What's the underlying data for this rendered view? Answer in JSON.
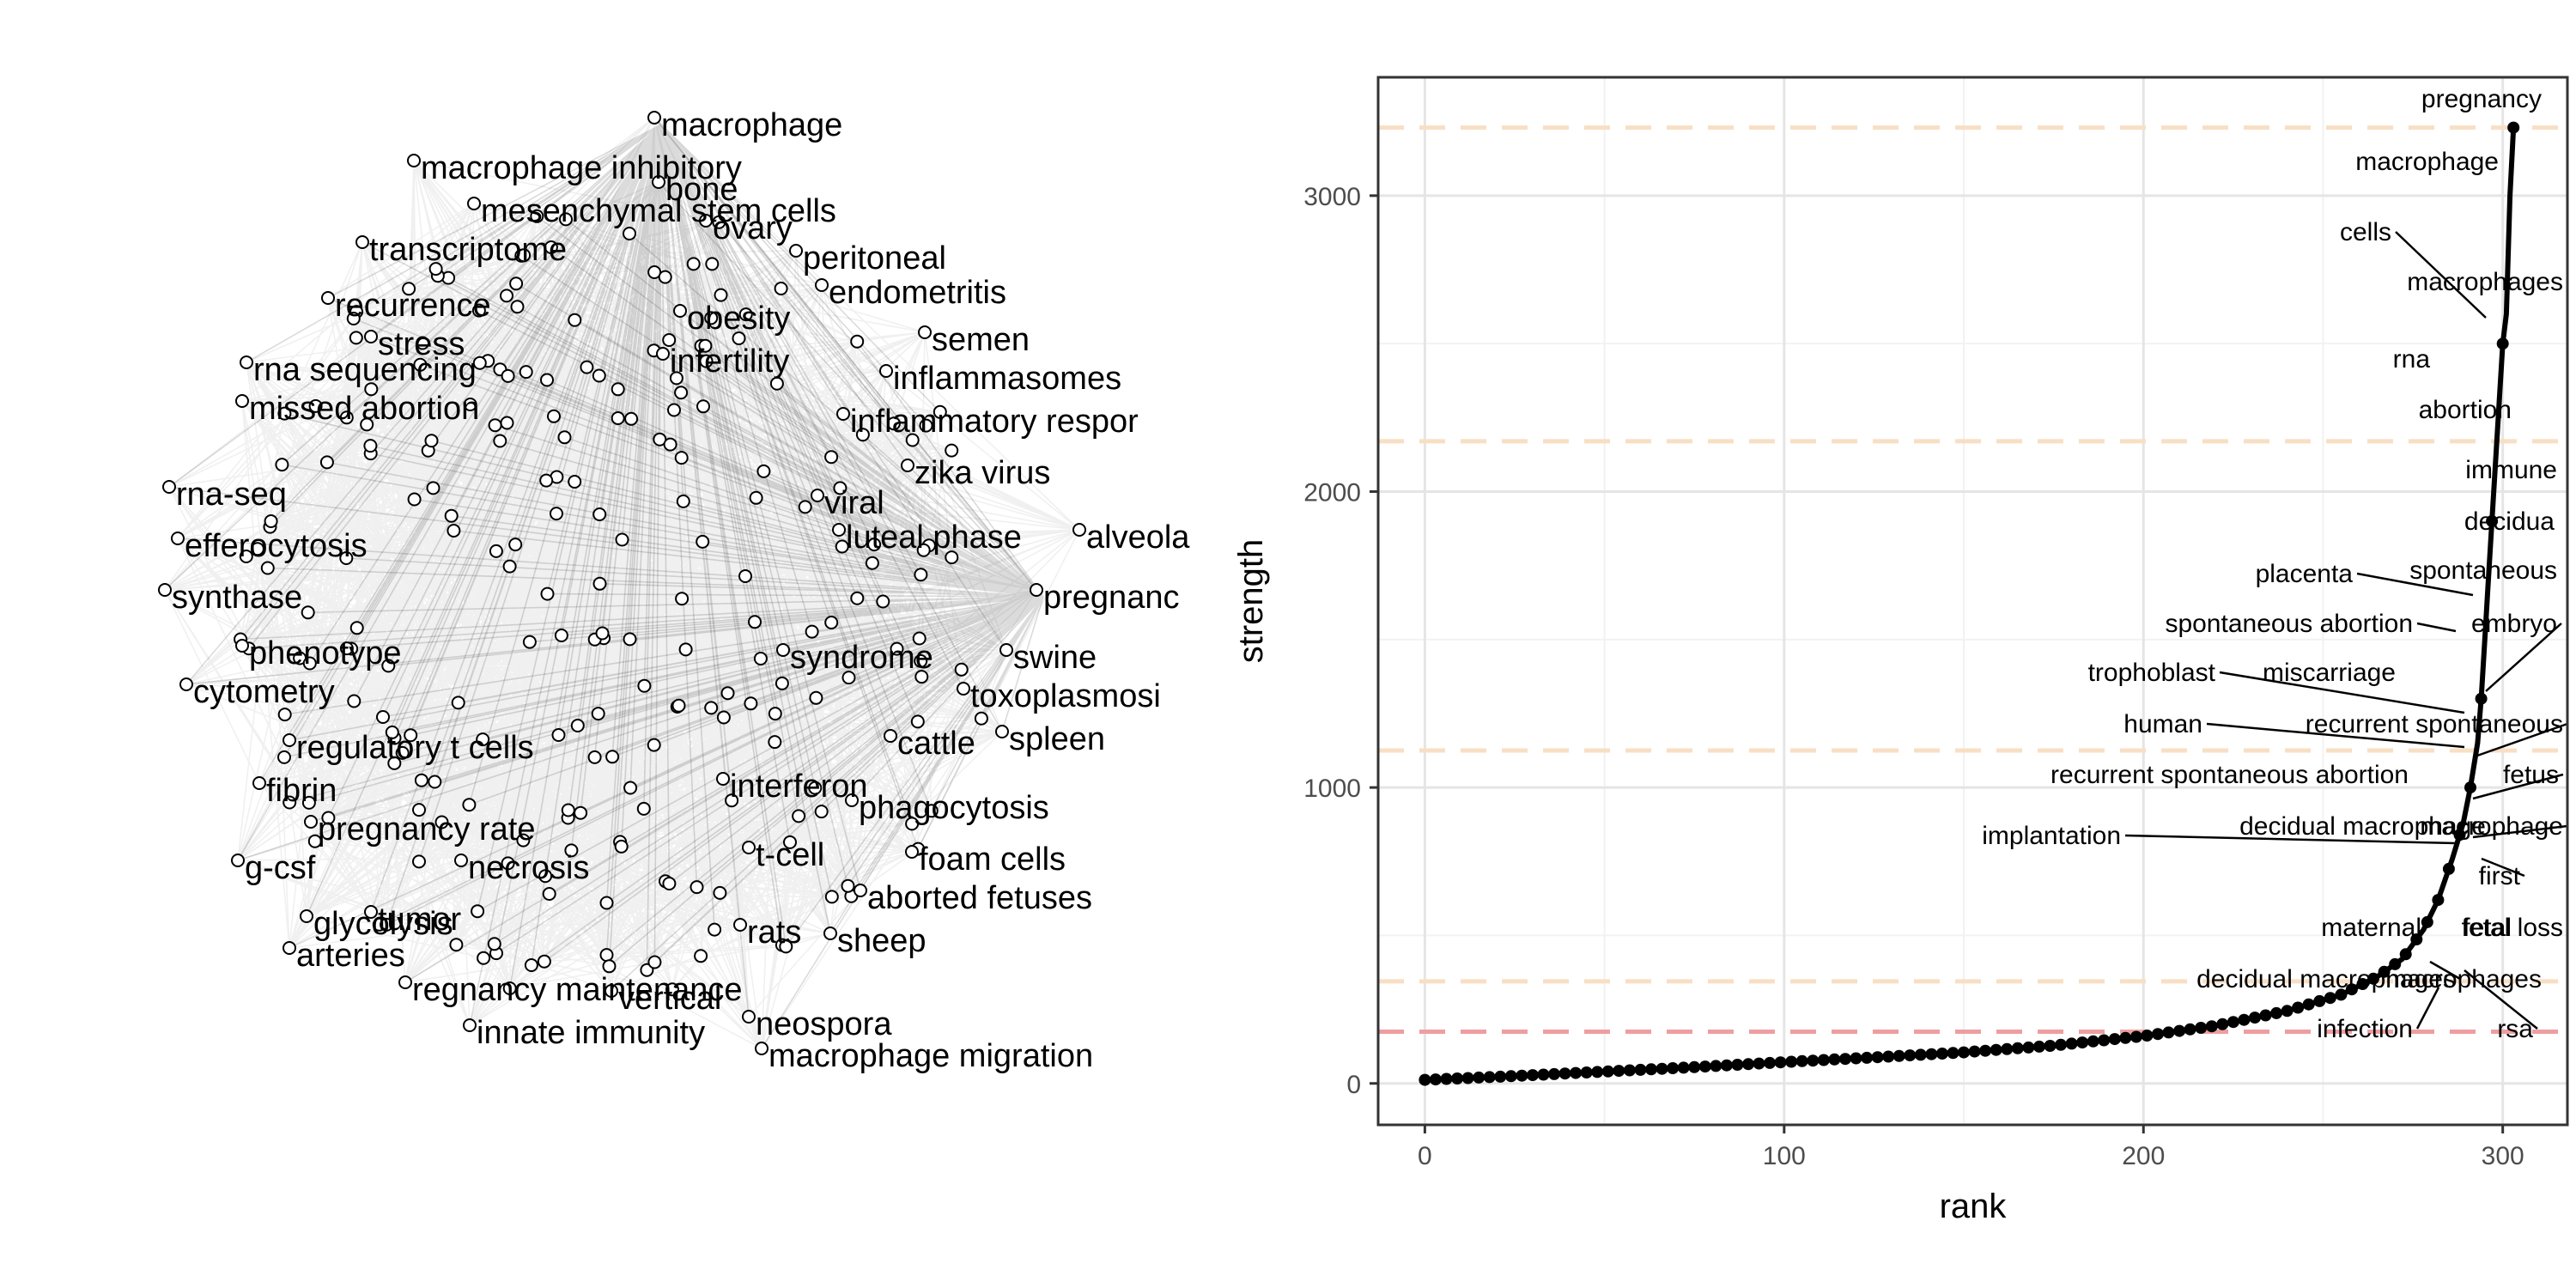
{
  "chart_data": [
    {
      "type": "network",
      "nodes": [
        "macrophage",
        "macrophage inhibitory",
        "mesenchymal stem cells",
        "bone",
        "ovary",
        "transcriptome",
        "peritoneal",
        "endometritis",
        "recurrence",
        "obesity",
        "semen",
        "stress",
        "infertility",
        "rna sequencing",
        "inflammasomes",
        "missed abortion",
        "inflammatory respor",
        "zika virus",
        "rna-seq",
        "viral",
        "efferocytosis",
        "luteal phase",
        "alveola",
        "synthase",
        "pregnanc",
        "phenotype",
        "swine",
        "syndrome",
        "cytometry",
        "toxoplasmosi",
        "regulatory t cells",
        "cattle",
        "spleen",
        "interferon",
        "fibrin",
        "pregnancy rate",
        "phagocytosis",
        "t-cell",
        "g-csf",
        "foam cells",
        "necrosis",
        "glycolysis",
        "aborted fetuses",
        "tumor",
        "rats",
        "sheep",
        "arteries",
        "regnancy maintenance",
        "vertical",
        "neospora",
        "innate immunity",
        "macrophage migration"
      ]
    },
    {
      "type": "scatter",
      "xlabel": "rank",
      "ylabel": "strength",
      "xlim": [
        -13,
        318
      ],
      "ylim": [
        -140,
        3400
      ],
      "xticks": [
        0,
        100,
        200,
        300
      ],
      "yticks": [
        0,
        1000,
        2000,
        3000
      ],
      "grid": true,
      "thresholds": [
        {
          "y": 3230,
          "color": "#f8dfc4"
        },
        {
          "y": 2170,
          "color": "#f8dfc4"
        },
        {
          "y": 1125,
          "color": "#f8dfc4"
        },
        {
          "y": 345,
          "color": "#f8dfc4"
        },
        {
          "y": 175,
          "color": "#ee9ea0"
        }
      ],
      "curve": [
        [
          0,
          12
        ],
        [
          25,
          25
        ],
        [
          50,
          40
        ],
        [
          75,
          55
        ],
        [
          100,
          72
        ],
        [
          125,
          88
        ],
        [
          150,
          105
        ],
        [
          175,
          128
        ],
        [
          200,
          160
        ],
        [
          220,
          195
        ],
        [
          240,
          245
        ],
        [
          255,
          300
        ],
        [
          265,
          360
        ],
        [
          272,
          420
        ],
        [
          278,
          520
        ],
        [
          282,
          620
        ],
        [
          286,
          760
        ],
        [
          289,
          880
        ],
        [
          291,
          1000
        ],
        [
          293,
          1150
        ],
        [
          294,
          1300
        ],
        [
          295,
          1500
        ],
        [
          296,
          1700
        ],
        [
          297,
          1900
        ],
        [
          298,
          2100
        ],
        [
          299,
          2300
        ],
        [
          300,
          2500
        ],
        [
          301,
          2600
        ],
        [
          302,
          3000
        ],
        [
          303,
          3230
        ]
      ],
      "points": [
        {
          "label": "pregnancy",
          "x": 303,
          "y": 3230
        },
        {
          "label": "macrophage",
          "x": 302,
          "y": 3000
        },
        {
          "label": "cells",
          "x": 301,
          "y": 2600
        },
        {
          "label": "macrophages",
          "x": 300,
          "y": 2530
        },
        {
          "label": "rna",
          "x": 299,
          "y": 2400
        },
        {
          "label": "abortion",
          "x": 298,
          "y": 2150
        },
        {
          "label": "immune",
          "x": 297,
          "y": 2000
        },
        {
          "label": "decidua",
          "x": 296,
          "y": 1850
        },
        {
          "label": "placenta",
          "x": 295,
          "y": 1660
        },
        {
          "label": "spontaneous",
          "x": 295,
          "y": 1600
        },
        {
          "label": "spontaneous abortion",
          "x": 294,
          "y": 1500
        },
        {
          "label": "embryo",
          "x": 294,
          "y": 1450
        },
        {
          "label": "trophoblast",
          "x": 293,
          "y": 1270
        },
        {
          "label": "miscarriage",
          "x": 293,
          "y": 1250
        },
        {
          "label": "human",
          "x": 292,
          "y": 1170
        },
        {
          "label": "recurrent spontaneous",
          "x": 292,
          "y": 1130
        },
        {
          "label": "recurrent spontaneous abortion",
          "x": 291,
          "y": 1030
        },
        {
          "label": "fetus",
          "x": 291,
          "y": 1000
        },
        {
          "label": "implantation",
          "x": 290,
          "y": 870
        },
        {
          "label": "decidual macrophage",
          "x": 289,
          "y": 860
        },
        {
          "label": "macrophage",
          "x": 289,
          "y": 840
        },
        {
          "label": "first",
          "x": 287,
          "y": 790
        },
        {
          "label": "maternal",
          "x": 284,
          "y": 690
        },
        {
          "label": "fetal",
          "x": 283,
          "y": 650
        },
        {
          "label": "fetal loss",
          "x": 282,
          "y": 600
        },
        {
          "label": "decidual macrophages",
          "x": 280,
          "y": 560
        },
        {
          "label": "macrophages",
          "x": 279,
          "y": 530
        },
        {
          "label": "infection",
          "x": 277,
          "y": 480
        },
        {
          "label": "rsa",
          "x": 276,
          "y": 450
        }
      ]
    }
  ]
}
